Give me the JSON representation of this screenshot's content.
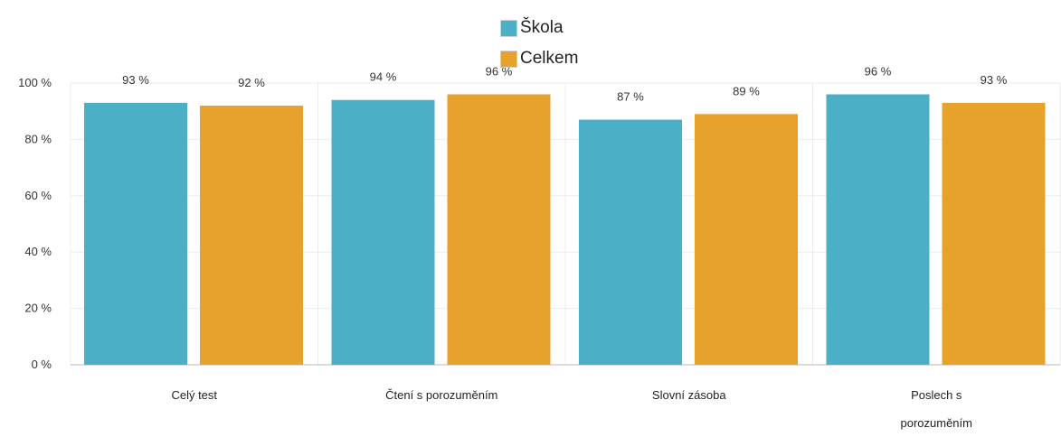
{
  "chart_data": {
    "type": "bar",
    "categories": [
      "Celý test",
      "Čtení s porozuměním",
      "Slovní zásoba",
      "Poslech s porozuměním"
    ],
    "category_lines": [
      [
        "Celý test"
      ],
      [
        "Čtení s porozuměním"
      ],
      [
        "Slovní zásoba"
      ],
      [
        "Poslech s",
        "porozuměním"
      ]
    ],
    "series": [
      {
        "name": "Škola",
        "values": [
          93,
          94,
          87,
          96
        ],
        "labels": [
          "93 %",
          "94 %",
          "87 %",
          "96 %"
        ],
        "color": "#4bb0c6"
      },
      {
        "name": "Celkem",
        "values": [
          92,
          96,
          89,
          93
        ],
        "labels": [
          "92 %",
          "96 %",
          "89 %",
          "93 %"
        ],
        "color": "#e6a22c"
      }
    ],
    "ylim": [
      0,
      100
    ],
    "yticks": [
      0,
      20,
      40,
      60,
      80,
      100
    ],
    "ytick_labels": [
      "0 %",
      "20 %",
      "40 %",
      "60 %",
      "80 %",
      "100 %"
    ],
    "grid": true,
    "legend_position": "top-center"
  }
}
